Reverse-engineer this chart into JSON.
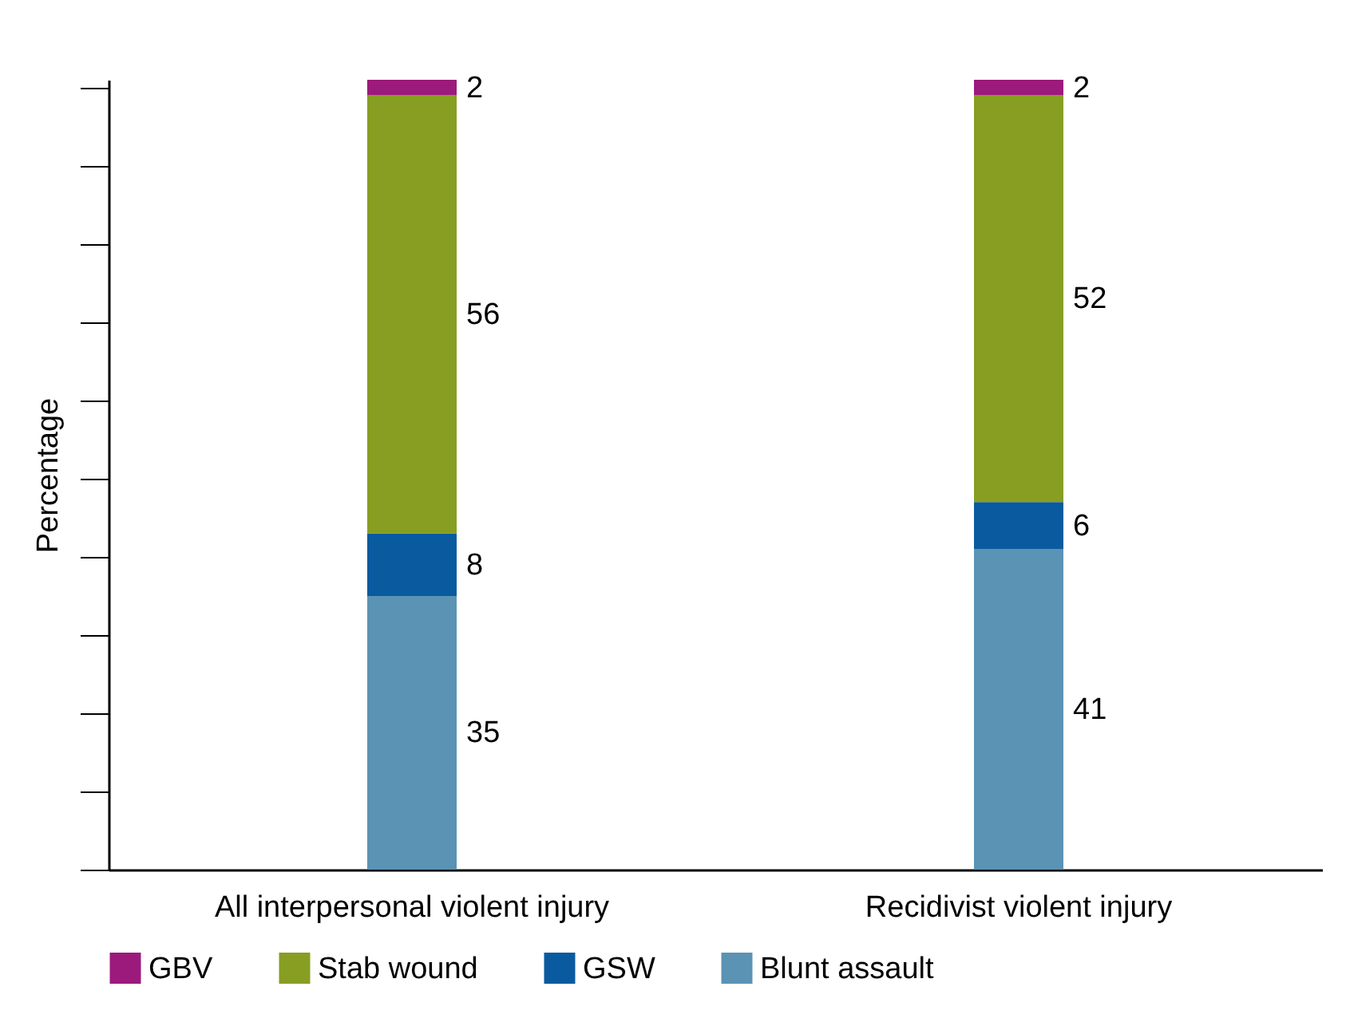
{
  "chart_data": {
    "type": "bar",
    "stacked": true,
    "ylabel": "Percentage",
    "categories": [
      "All interpersonal violent injury",
      "Recidivist violent injury"
    ],
    "series": [
      {
        "name": "Blunt assault",
        "color": "#5b93b4",
        "values": [
          35,
          41
        ]
      },
      {
        "name": "GSW",
        "color": "#0a5aa0",
        "values": [
          8,
          6
        ]
      },
      {
        "name": "Stab wound",
        "color": "#879e23",
        "values": [
          56,
          52
        ]
      },
      {
        "name": "GBV",
        "color": "#9c1a7c",
        "values": [
          2,
          2
        ]
      }
    ],
    "tick_labels": "x",
    "data_labels": true,
    "legend": "bottom"
  }
}
